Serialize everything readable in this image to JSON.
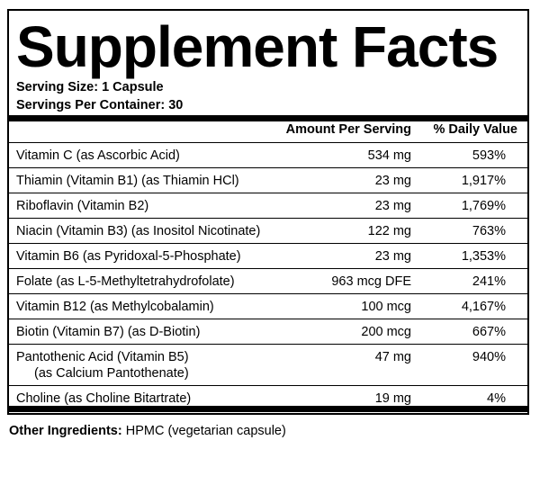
{
  "title": "Supplement Facts",
  "serving_size": "Serving Size: 1 Capsule",
  "servings_per_container": "Servings Per Container: 30",
  "headers": {
    "amount": "Amount Per Serving",
    "daily_value": "% Daily Value"
  },
  "rows": [
    {
      "name": "Vitamin C (as Ascorbic Acid)",
      "amount": "534 mg",
      "dv": "593%"
    },
    {
      "name": "Thiamin (Vitamin B1) (as Thiamin HCl)",
      "amount": "23 mg",
      "dv": "1,917%"
    },
    {
      "name": "Riboflavin (Vitamin B2)",
      "amount": "23 mg",
      "dv": "1,769%"
    },
    {
      "name": "Niacin (Vitamin B3) (as Inositol Nicotinate)",
      "amount": "122 mg",
      "dv": "763%"
    },
    {
      "name": "Vitamin B6 (as Pyridoxal-5-Phosphate)",
      "amount": "23 mg",
      "dv": "1,353%"
    },
    {
      "name": "Folate (as L-5-Methyltetrahydrofolate)",
      "amount": "963 mcg DFE",
      "dv": "241%"
    },
    {
      "name": "Vitamin B12 (as Methylcobalamin)",
      "amount": "100 mcg",
      "dv": "4,167%"
    },
    {
      "name": "Biotin (Vitamin B7) (as D-Biotin)",
      "amount": "200 mcg",
      "dv": "667%"
    },
    {
      "name": "Pantothenic Acid (Vitamin B5)",
      "name_line2": "(as Calcium Pantothenate)",
      "amount": "47 mg",
      "dv": "940%"
    },
    {
      "name": "Choline (as Choline Bitartrate)",
      "amount": "19 mg",
      "dv": "4%"
    }
  ],
  "other_ingredients": {
    "label": "Other Ingredients:",
    "value": "HPMC (vegetarian capsule)"
  }
}
